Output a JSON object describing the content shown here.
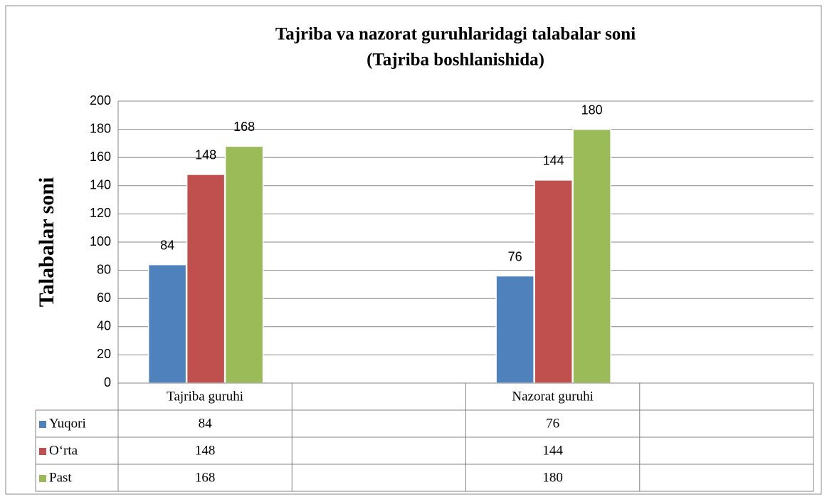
{
  "chart_data": {
    "type": "bar",
    "title": "Tajriba va nazorat guruhlaridagi talabalar soni",
    "subtitle": "(Tajriba boshlanishida)",
    "y_label": "Talabalar soni",
    "categories": [
      "Tajriba guruhi",
      null,
      "Nazorat guruhi",
      null
    ],
    "series": [
      {
        "name": "Yuqori",
        "color": "#4f81bd",
        "values": [
          84,
          null,
          76,
          null
        ]
      },
      {
        "name": "O‘rta",
        "color": "#c0504d",
        "values": [
          148,
          null,
          144,
          null
        ]
      },
      {
        "name": "Past",
        "color": "#9bbb59",
        "values": [
          168,
          null,
          180,
          null
        ]
      }
    ],
    "ylim": [
      0,
      200
    ],
    "yticks": [
      0,
      20,
      40,
      60,
      80,
      100,
      120,
      140,
      160,
      180,
      200
    ],
    "grid": true,
    "data_table": true
  }
}
